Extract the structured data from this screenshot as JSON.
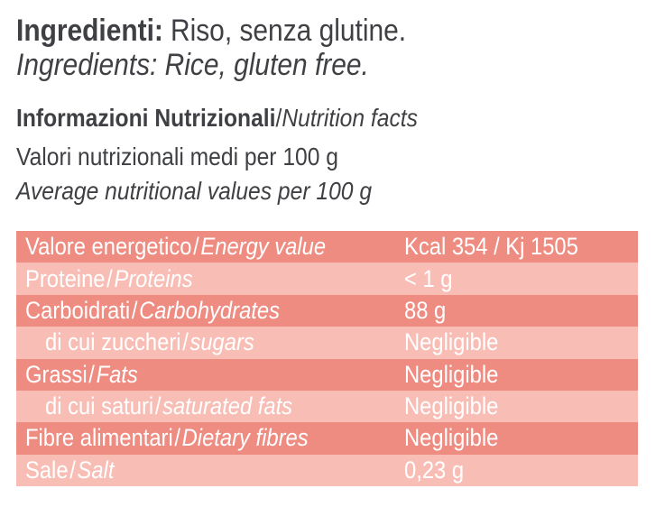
{
  "colors": {
    "page_bg": "#ffffff",
    "heading_text": "#3f4043",
    "row_dark": "#ee8c82",
    "row_light": "#f8beb6",
    "table_text": "#ffffff"
  },
  "ingredients": {
    "label_bold": "Ingredienti:",
    "text_it": "Riso, senza glutine.",
    "text_en": "Ingredients: Rice, gluten free."
  },
  "nutrition": {
    "heading_bold": "Informazioni Nutrizionali",
    "heading_separator": "/",
    "heading_italic": "Nutrition facts",
    "subtitle_it": "Valori nutrizionali medi per 100 g",
    "subtitle_en": "Average nutritional values per 100 g"
  },
  "table": {
    "separator": "/",
    "rows": [
      {
        "label_it": "Valore energetico",
        "label_en": "Energy value",
        "value": "Kcal 354 / Kj 1505"
      },
      {
        "label_it": "Proteine",
        "label_en": "Proteins",
        "value": "< 1 g"
      },
      {
        "label_it": "Carboidrati",
        "label_en": "Carbohydrates",
        "value": "88 g"
      },
      {
        "label_it": "di cui zuccheri",
        "label_en": "sugars",
        "value": "Negligible"
      },
      {
        "label_it": "Grassi",
        "label_en": "Fats",
        "value": "Negligible"
      },
      {
        "label_it": "di cui saturi",
        "label_en": "saturated fats",
        "value": "Negligible"
      },
      {
        "label_it": "Fibre alimentari",
        "label_en": "Dietary fibres",
        "value": "Negligible"
      },
      {
        "label_it": "Sale",
        "label_en": "Salt",
        "value": "0,23 g"
      }
    ]
  }
}
